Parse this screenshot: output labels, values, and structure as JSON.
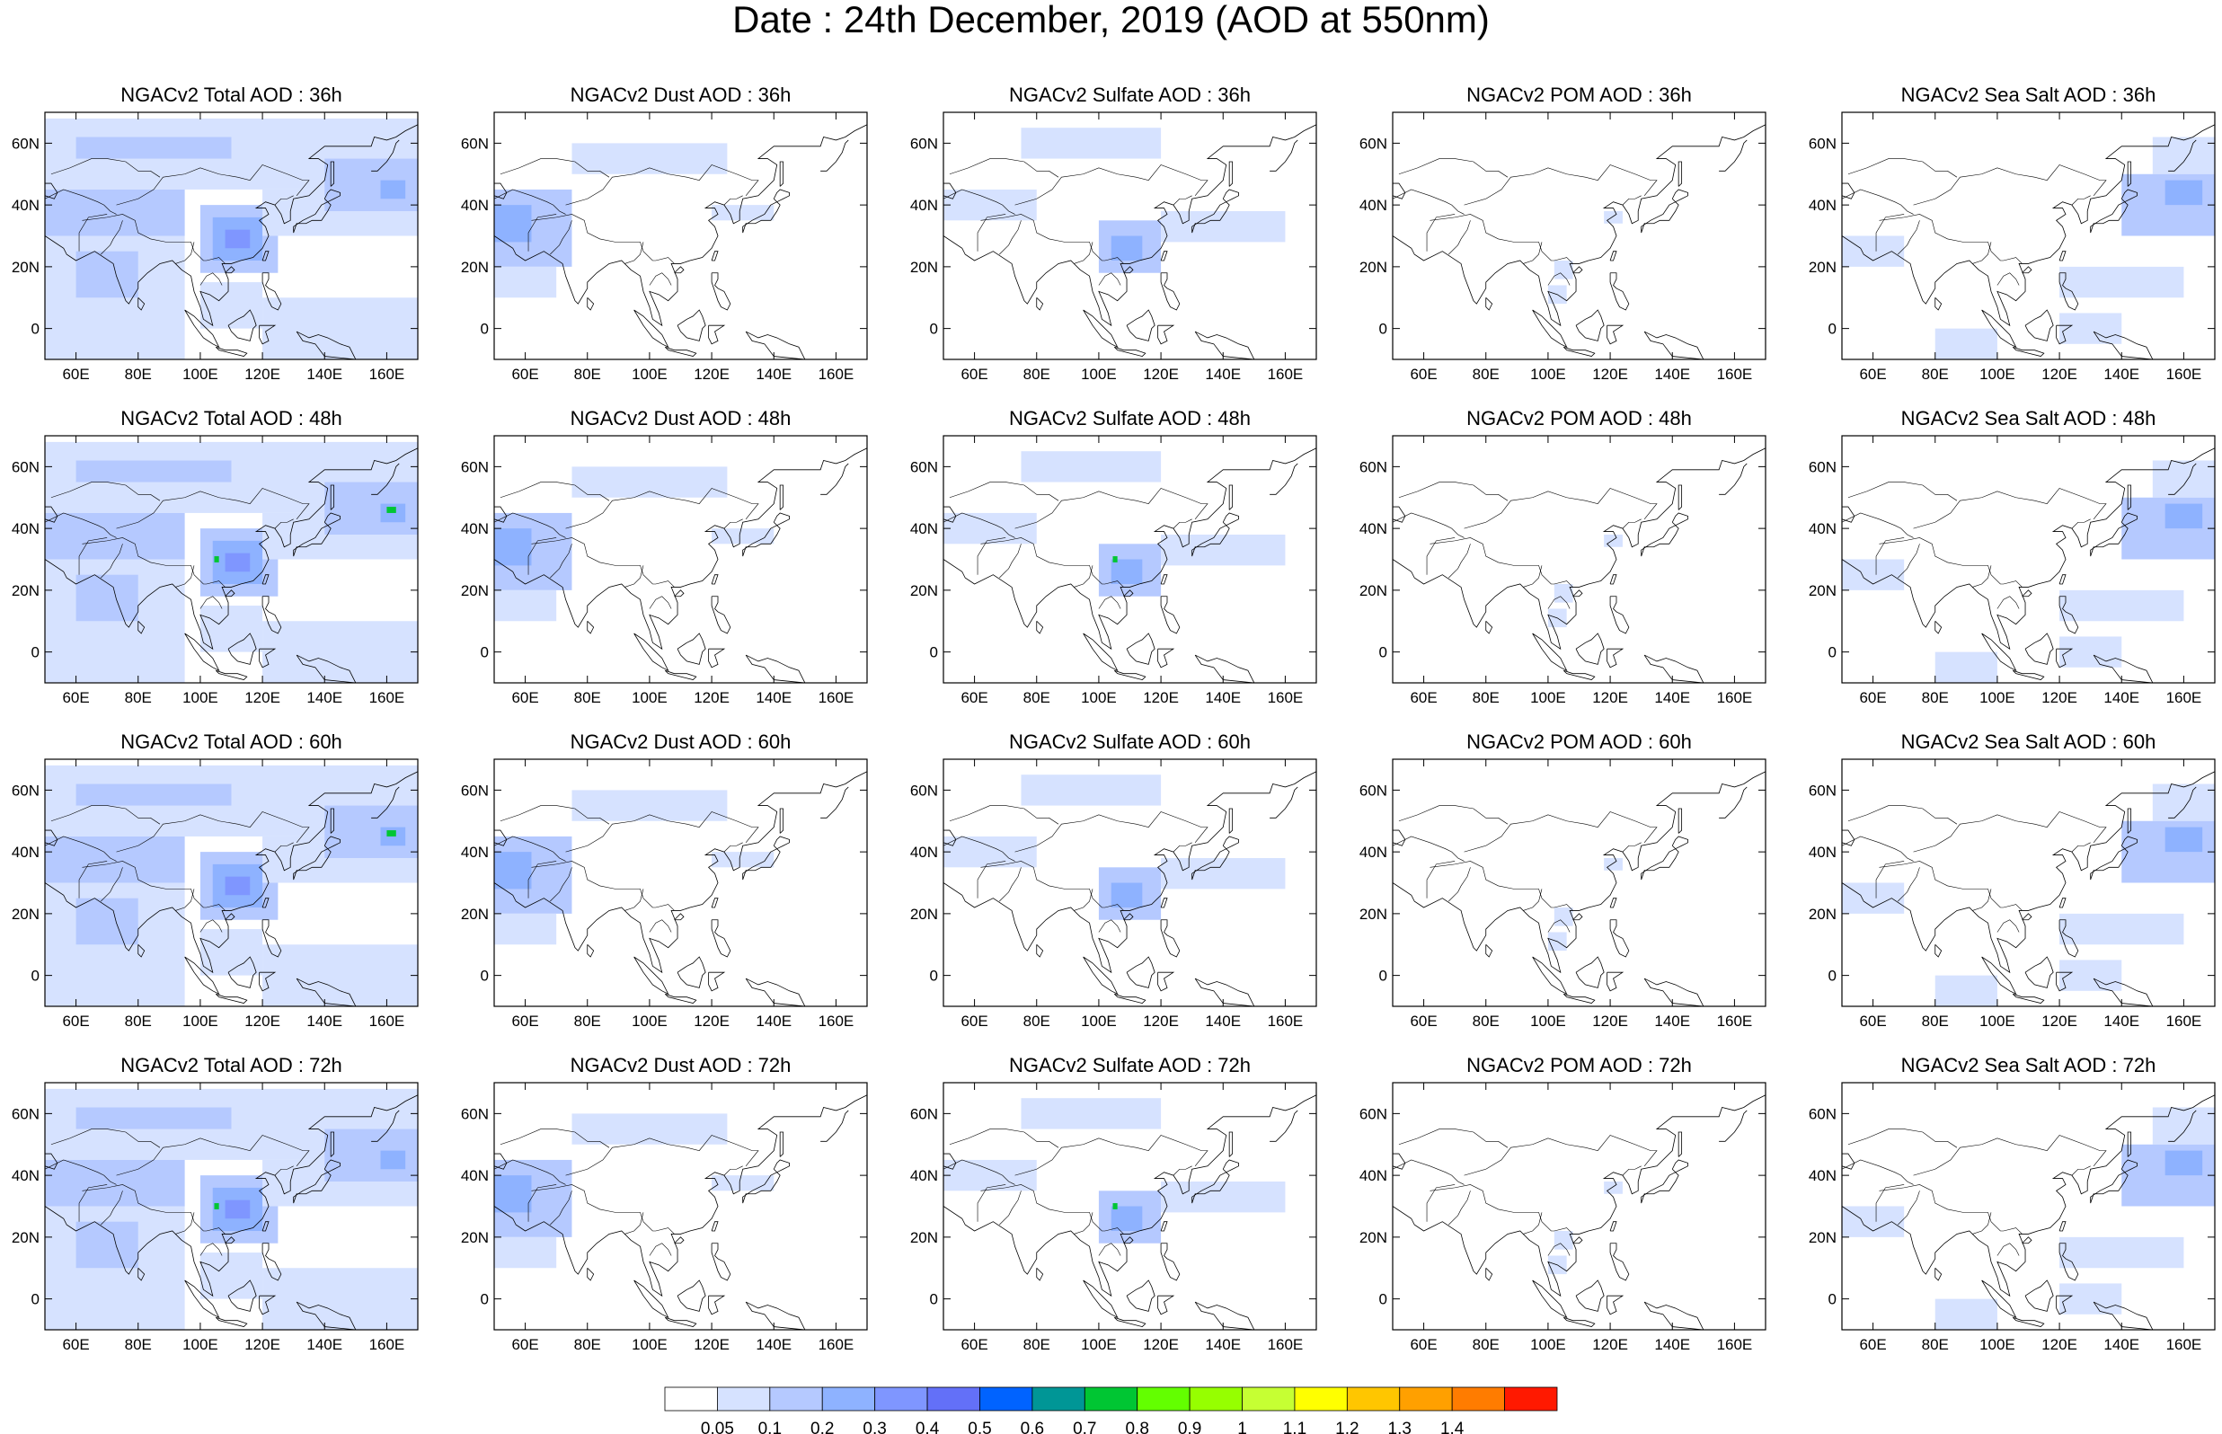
{
  "title": "Date : 24th December, 2019 (AOD at 550nm)",
  "panels": [
    [
      "NGACv2 Total AOD : 36h",
      "NGACv2 Dust AOD : 36h",
      "NGACv2 Sulfate AOD : 36h",
      "NGACv2 POM AOD : 36h",
      "NGACv2 Sea Salt AOD : 36h"
    ],
    [
      "NGACv2 Total AOD : 48h",
      "NGACv2 Dust AOD : 48h",
      "NGACv2 Sulfate AOD : 48h",
      "NGACv2 POM AOD : 48h",
      "NGACv2 Sea Salt AOD : 48h"
    ],
    [
      "NGACv2 Total AOD : 60h",
      "NGACv2 Dust AOD : 60h",
      "NGACv2 Sulfate AOD : 60h",
      "NGACv2 POM AOD : 60h",
      "NGACv2 Sea Salt AOD : 60h"
    ],
    [
      "NGACv2 Total AOD : 72h",
      "NGACv2 Dust AOD : 72h",
      "NGACv2 Sulfate AOD : 72h",
      "NGACv2 POM AOD : 72h",
      "NGACv2 Sea Salt  AOD : 72h"
    ]
  ],
  "map": {
    "lon_range": [
      50,
      170
    ],
    "lat_range": [
      -10,
      70
    ],
    "lon_ticks": [
      "60E",
      "80E",
      "100E",
      "120E",
      "140E",
      "160E"
    ],
    "lat_ticks": [
      "60N",
      "40N",
      "20N",
      "0"
    ]
  },
  "colorbar": {
    "levels": [
      "0.05",
      "0.1",
      "0.2",
      "0.3",
      "0.4",
      "0.5",
      "0.6",
      "0.7",
      "0.8",
      "0.9",
      "1",
      "1.1",
      "1.2",
      "1.3",
      "1.4"
    ],
    "colors": [
      "#ffffff",
      "#d6e2ff",
      "#b5c9ff",
      "#8eb2ff",
      "#7f96ff",
      "#6370f8",
      "#0063ff",
      "#009696",
      "#00c633",
      "#63ff00",
      "#96ff00",
      "#c6ff33",
      "#ffff00",
      "#ffc600",
      "#ffa000",
      "#ff7c00",
      "#ff1900"
    ]
  }
}
